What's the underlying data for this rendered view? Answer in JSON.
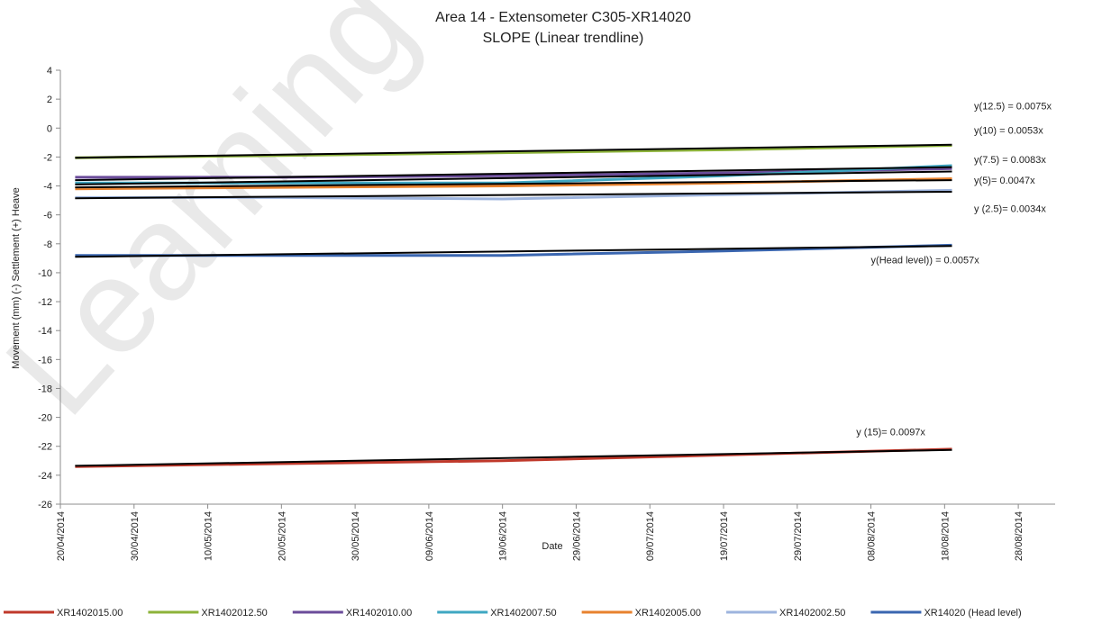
{
  "chart_data": {
    "type": "line",
    "title": "Area 14 - Extensometer C305-XR14020",
    "subtitle": "SLOPE (Linear trendline)",
    "xlabel": "Date",
    "ylabel": "Movement (mm) (-) Settlement (+) Heave",
    "ylim": [
      -26,
      4
    ],
    "yticks": [
      4,
      2,
      0,
      -2,
      -4,
      -6,
      -8,
      -10,
      -12,
      -14,
      -16,
      -18,
      -20,
      -22,
      -24,
      -26
    ],
    "xlim": [
      "2014-04-20",
      "2014-09-02"
    ],
    "xticks": [
      {
        "date": "2014-04-20",
        "label": "20/04/2014"
      },
      {
        "date": "2014-04-30",
        "label": "30/04/2014"
      },
      {
        "date": "2014-05-10",
        "label": "10/05/2014"
      },
      {
        "date": "2014-05-20",
        "label": "20/05/2014"
      },
      {
        "date": "2014-05-30",
        "label": "30/05/2014"
      },
      {
        "date": "2014-06-09",
        "label": "09/06/2014"
      },
      {
        "date": "2014-06-19",
        "label": "19/06/2014"
      },
      {
        "date": "2014-06-29",
        "label": "29/06/2014"
      },
      {
        "date": "2014-07-09",
        "label": "09/07/2014"
      },
      {
        "date": "2014-07-19",
        "label": "19/07/2014"
      },
      {
        "date": "2014-07-29",
        "label": "29/07/2014"
      },
      {
        "date": "2014-08-08",
        "label": "08/08/2014"
      },
      {
        "date": "2014-08-18",
        "label": "18/08/2014"
      },
      {
        "date": "2014-08-28",
        "label": "28/08/2014"
      }
    ],
    "grid": false,
    "legend_position": "bottom",
    "series": [
      {
        "name": "XR1402015.00",
        "color": "#c0392b",
        "points": [
          [
            "2014-04-22",
            -23.4
          ],
          [
            "2014-05-20",
            -23.2
          ],
          [
            "2014-06-19",
            -23.0
          ],
          [
            "2014-07-19",
            -22.6
          ],
          [
            "2014-08-19",
            -22.2
          ]
        ]
      },
      {
        "name": "XR1402012.50",
        "color": "#8db33a",
        "points": [
          [
            "2014-04-22",
            -2.05
          ],
          [
            "2014-05-20",
            -1.9
          ],
          [
            "2014-06-19",
            -1.7
          ],
          [
            "2014-07-19",
            -1.5
          ],
          [
            "2014-08-19",
            -1.2
          ]
        ]
      },
      {
        "name": "XR1402010.00",
        "color": "#6b4c9a",
        "points": [
          [
            "2014-04-22",
            -3.4
          ],
          [
            "2014-05-20",
            -3.4
          ],
          [
            "2014-06-19",
            -3.3
          ],
          [
            "2014-07-19",
            -3.1
          ],
          [
            "2014-08-19",
            -2.8
          ]
        ]
      },
      {
        "name": "XR1402007.50",
        "color": "#3fa7c2",
        "points": [
          [
            "2014-04-22",
            -3.8
          ],
          [
            "2014-05-20",
            -3.8
          ],
          [
            "2014-06-19",
            -3.8
          ],
          [
            "2014-07-19",
            -3.3
          ],
          [
            "2014-08-19",
            -2.6
          ]
        ]
      },
      {
        "name": "XR1402005.00",
        "color": "#e8822e",
        "points": [
          [
            "2014-04-22",
            -4.2
          ],
          [
            "2014-05-20",
            -4.1
          ],
          [
            "2014-06-19",
            -4.0
          ],
          [
            "2014-07-19",
            -3.8
          ],
          [
            "2014-08-19",
            -3.5
          ]
        ]
      },
      {
        "name": "XR1402002.50",
        "color": "#9db4de",
        "points": [
          [
            "2014-04-22",
            -4.8
          ],
          [
            "2014-05-20",
            -4.8
          ],
          [
            "2014-06-19",
            -4.9
          ],
          [
            "2014-07-19",
            -4.6
          ],
          [
            "2014-08-19",
            -4.3
          ]
        ]
      },
      {
        "name": "XR14020 (Head level)",
        "color": "#3a66b0",
        "points": [
          [
            "2014-04-22",
            -8.8
          ],
          [
            "2014-05-20",
            -8.8
          ],
          [
            "2014-06-19",
            -8.8
          ],
          [
            "2014-07-19",
            -8.5
          ],
          [
            "2014-08-19",
            -8.1
          ]
        ]
      }
    ],
    "trendlines": [
      {
        "label": "y(12.5) = 0.0075x",
        "from": [
          "2014-04-22",
          -2.05
        ],
        "to": [
          "2014-08-19",
          -1.15
        ],
        "label_anchor": [
          "2014-08-22",
          1.55
        ]
      },
      {
        "label": "y(10) = 0.0053x",
        "from": [
          "2014-04-22",
          -3.6
        ],
        "to": [
          "2014-08-19",
          -2.7
        ],
        "label_anchor": [
          "2014-08-22",
          -0.15
        ]
      },
      {
        "label": "y(7.5) = 0.0083x",
        "from": [
          "2014-04-22",
          -3.9
        ],
        "to": [
          "2014-08-19",
          -3.0
        ],
        "label_anchor": [
          "2014-08-22",
          -2.15
        ]
      },
      {
        "label": "y(5)= 0.0047x",
        "from": [
          "2014-04-22",
          -4.1
        ],
        "to": [
          "2014-08-19",
          -3.6
        ],
        "label_anchor": [
          "2014-08-22",
          -3.6
        ]
      },
      {
        "label": "y (2.5)= 0.0034x",
        "from": [
          "2014-04-22",
          -4.85
        ],
        "to": [
          "2014-08-19",
          -4.4
        ],
        "label_anchor": [
          "2014-08-22",
          -5.55
        ]
      },
      {
        "label": "y(Head level)) = 0.0057x",
        "from": [
          "2014-04-22",
          -8.9
        ],
        "to": [
          "2014-08-19",
          -8.15
        ],
        "label_anchor": [
          "2014-08-08",
          -9.1
        ]
      },
      {
        "label": "y (15)= 0.0097x",
        "from": [
          "2014-04-22",
          -23.35
        ],
        "to": [
          "2014-08-19",
          -22.25
        ],
        "label_anchor": [
          "2014-08-06",
          -21.0
        ]
      }
    ],
    "trendline_color": "#000000",
    "watermark": "Learning Leg"
  }
}
